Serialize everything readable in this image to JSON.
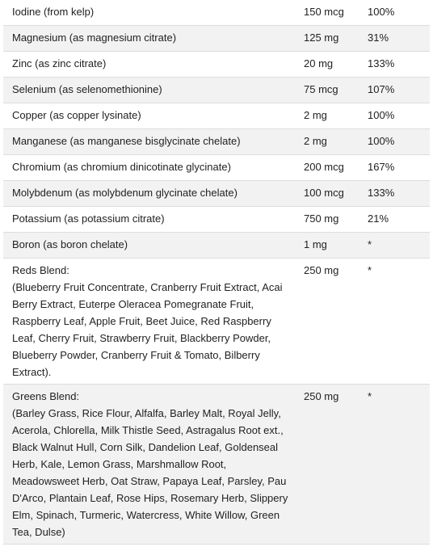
{
  "rows": [
    {
      "name": "Iodine (from kelp)",
      "amount": "150 mcg",
      "dv": "100%"
    },
    {
      "name": "Magnesium (as magnesium citrate)",
      "amount": "125 mg",
      "dv": "31%"
    },
    {
      "name": "Zinc (as zinc citrate)",
      "amount": "20 mg",
      "dv": "133%"
    },
    {
      "name": "Selenium (as selenomethionine)",
      "amount": "75 mcg",
      "dv": "107%"
    },
    {
      "name": "Copper (as copper lysinate)",
      "amount": "2 mg",
      "dv": "100%"
    },
    {
      "name": "Manganese (as manganese bisglycinate chelate)",
      "amount": "2 mg",
      "dv": "100%"
    },
    {
      "name": "Chromium (as chromium dinicotinate glycinate)",
      "amount": "200 mcg",
      "dv": "167%"
    },
    {
      "name": "Molybdenum (as molybdenum glycinate chelate)",
      "amount": "100 mcg",
      "dv": "133%"
    },
    {
      "name": "Potassium (as potassium citrate)",
      "amount": "750 mg",
      "dv": "21%"
    },
    {
      "name": "Boron (as boron chelate)",
      "amount": "1 mg",
      "dv": "*"
    }
  ],
  "blends": [
    {
      "title": "Reds Blend:",
      "detail": "(Blueberry Fruit Concentrate, Cranberry Fruit Extract, Acai Berry Extract, Euterpe Oleracea Pomegranate Fruit, Raspberry Leaf, Apple Fruit, Beet Juice, Red Raspberry Leaf, Cherry Fruit, Strawberry Fruit, Blackberry Powder, Blueberry Powder, Cranberry Fruit & Tomato, Bilberry Extract).",
      "amount": "250 mg",
      "dv": "*"
    },
    {
      "title": "Greens Blend:",
      "detail": "(Barley Grass, Rice Flour, Alfalfa, Barley Malt, Royal Jelly, Acerola, Chlorella, Milk Thistle Seed, Astragalus Root ext., Black Walnut Hull, Corn Silk, Dandelion Leaf, Goldenseal Herb, Kale, Lemon Grass, Marshmallow Root, Meadowsweet Herb, Oat Straw, Papaya Leaf, Parsley, Pau D'Arco, Plantain Leaf, Rose Hips, Rosemary Herb, Slippery Elm, Spinach, Turmeric, Watercress, White Willow, Green Tea, Dulse)",
      "amount": "250 mg",
      "dv": "*"
    }
  ]
}
